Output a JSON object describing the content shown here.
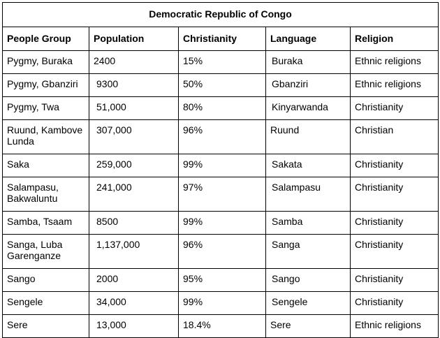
{
  "title": "Democratic Republic of Congo",
  "headers": [
    "People Group",
    "Population",
    "Christianity",
    "Language",
    "Religion"
  ],
  "rows": [
    [
      "Pygmy, Buraka",
      "2400",
      "15%",
      "Buraka",
      "Ethnic religions"
    ],
    [
      "Pygmy, Gbanziri",
      "9300",
      "50%",
      "Gbanziri",
      "Ethnic religions"
    ],
    [
      "Pygmy, Twa",
      "51,000",
      "80%",
      "Kinyarwanda",
      "Christianity"
    ],
    [
      "Ruund, Kambove Lunda",
      "307,000",
      "96%",
      "Ruund",
      "Christian"
    ],
    [
      "Saka",
      "259,000",
      "99%",
      "Sakata",
      "Christianity"
    ],
    [
      "Salampasu, Bakwaluntu",
      "241,000",
      "97%",
      "Salampasu",
      "Christianity"
    ],
    [
      "Samba, Tsaam",
      "8500",
      "99%",
      "Samba",
      "Christianity"
    ],
    [
      "Sanga, Luba Garenganze",
      "1,137,000",
      "96%",
      "Sanga",
      "Christianity"
    ],
    [
      "Sango",
      "2000",
      "95%",
      "Sango",
      "Christianity"
    ],
    [
      "Sengele",
      "34,000",
      "99%",
      "Sengele",
      "Christianity"
    ],
    [
      "Sere",
      "13,000",
      "18.4%",
      "Sere",
      "Ethnic religions"
    ]
  ]
}
